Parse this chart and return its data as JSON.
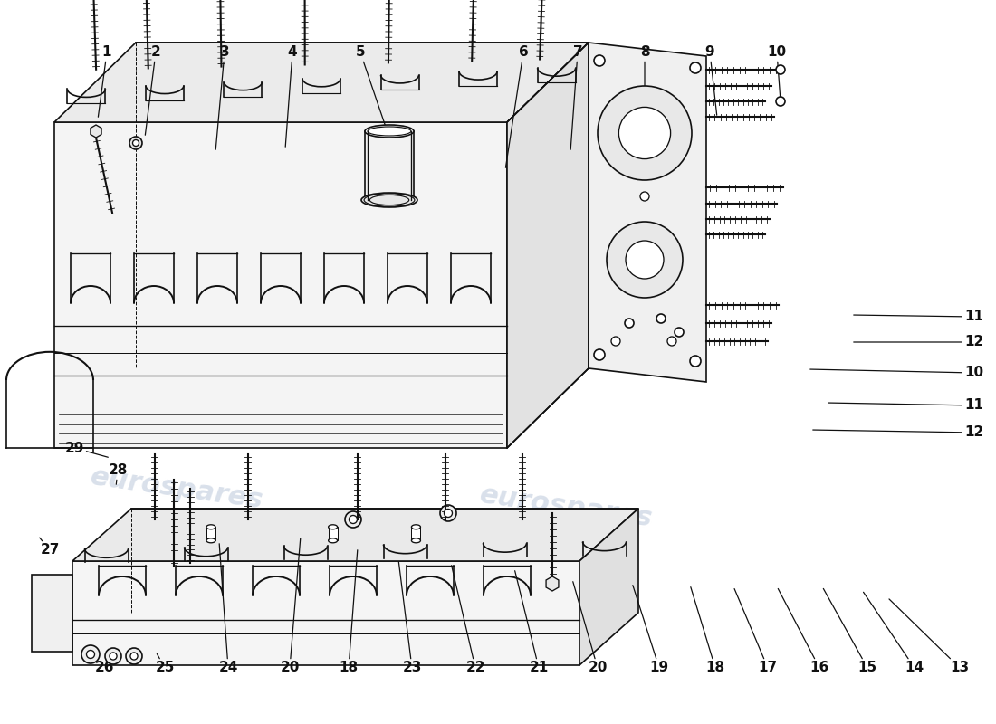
{
  "bg": "#ffffff",
  "lc": "#111111",
  "wm_color": "#c5d0e0",
  "wm_text": "eurospares",
  "lw": 1.2,
  "fs_label": 11,
  "top_labels": [
    [
      1,
      118,
      58,
      108,
      132
    ],
    [
      2,
      172,
      58,
      160,
      152
    ],
    [
      3,
      248,
      58,
      238,
      168
    ],
    [
      4,
      323,
      58,
      315,
      165
    ],
    [
      5,
      398,
      58,
      430,
      152
    ],
    [
      6,
      578,
      58,
      558,
      188
    ],
    [
      7,
      638,
      58,
      630,
      168
    ],
    [
      8,
      712,
      58,
      712,
      148
    ],
    [
      9,
      784,
      58,
      792,
      130
    ],
    [
      10,
      858,
      58,
      862,
      112
    ]
  ],
  "right_labels": [
    [
      11,
      1065,
      350,
      940,
      348
    ],
    [
      12,
      1065,
      378,
      940,
      378
    ],
    [
      10,
      1065,
      412,
      892,
      408
    ],
    [
      11,
      1065,
      448,
      912,
      445
    ],
    [
      12,
      1065,
      478,
      895,
      475
    ]
  ],
  "bottom_labels": [
    [
      13,
      1060,
      738,
      980,
      660
    ],
    [
      14,
      1010,
      738,
      952,
      652
    ],
    [
      15,
      958,
      738,
      908,
      648
    ],
    [
      16,
      905,
      738,
      858,
      648
    ],
    [
      17,
      848,
      738,
      810,
      648
    ],
    [
      18,
      790,
      738,
      762,
      646
    ],
    [
      19,
      728,
      738,
      698,
      644
    ],
    [
      20,
      660,
      738,
      632,
      640
    ],
    [
      21,
      595,
      738,
      568,
      628
    ],
    [
      22,
      525,
      738,
      498,
      622
    ],
    [
      23,
      455,
      738,
      440,
      618
    ],
    [
      18,
      385,
      738,
      395,
      605
    ],
    [
      20,
      320,
      738,
      332,
      592
    ],
    [
      24,
      252,
      738,
      242,
      598
    ],
    [
      25,
      182,
      738,
      172,
      720
    ],
    [
      26,
      115,
      738,
      100,
      722
    ],
    [
      27,
      55,
      608,
      42,
      592
    ],
    [
      28,
      130,
      520,
      128,
      538
    ],
    [
      29,
      82,
      495,
      122,
      506
    ]
  ]
}
